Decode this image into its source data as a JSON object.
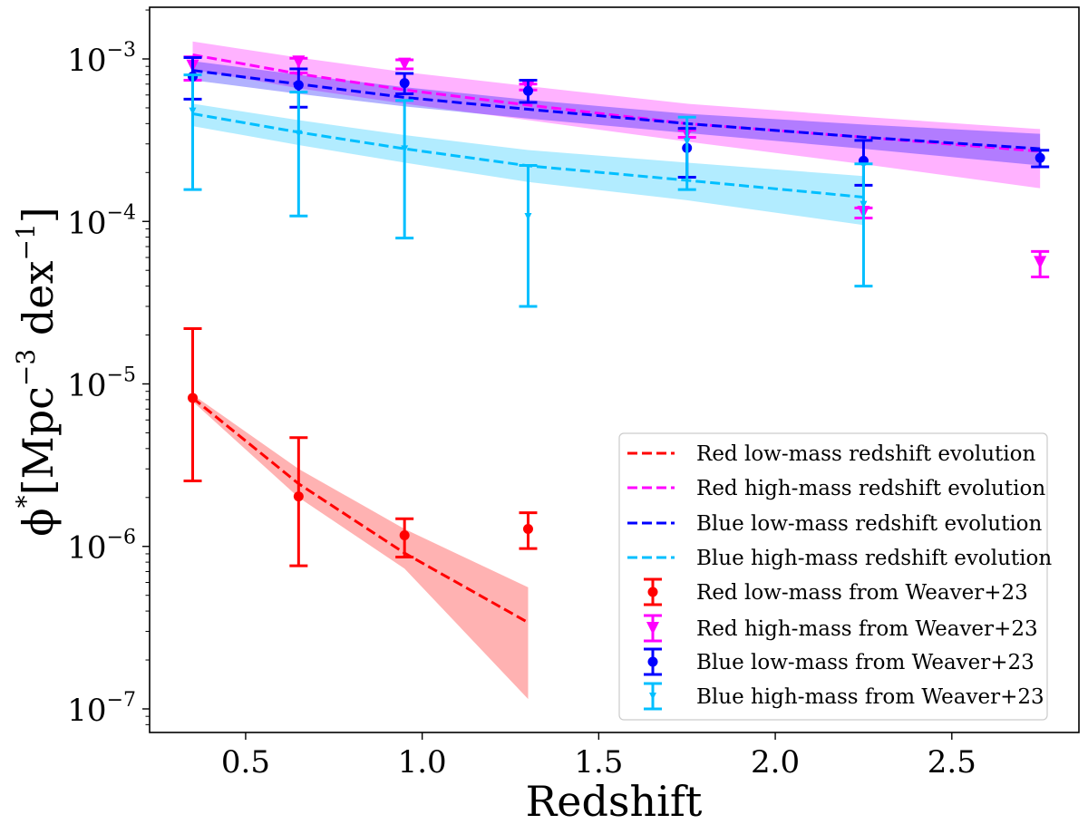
{
  "chart_data": {
    "type": "line",
    "title": "",
    "xlabel": "Redshift",
    "ylabel_parts": [
      {
        "text": "ϕ",
        "sup": false
      },
      {
        "text": "*",
        "sup": true
      },
      {
        "text": "[Mpc",
        "sup": false
      },
      {
        "text": "−3",
        "sup": true
      },
      {
        "text": " dex",
        "sup": false
      },
      {
        "text": "−1",
        "sup": true
      },
      {
        "text": "]",
        "sup": false
      }
    ],
    "xlim": [
      0.228,
      2.86
    ],
    "ylim": [
      7.16e-08,
      0.00208
    ],
    "yscale": "log",
    "grid": false,
    "xticks": [
      {
        "value": 0.5,
        "label": "0.5"
      },
      {
        "value": 1.0,
        "label": "1.0"
      },
      {
        "value": 1.5,
        "label": "1.5"
      },
      {
        "value": 2.0,
        "label": "2.0"
      },
      {
        "value": 2.5,
        "label": "2.5"
      }
    ],
    "yticks": [
      {
        "value": 0.001,
        "base": "10",
        "exp": "−3"
      },
      {
        "value": 0.0001,
        "base": "10",
        "exp": "−4"
      },
      {
        "value": 1e-05,
        "base": "10",
        "exp": "−5"
      },
      {
        "value": 1e-06,
        "base": "10",
        "exp": "−6"
      },
      {
        "value": 1e-07,
        "base": "10",
        "exp": "−7"
      }
    ],
    "legend": {
      "position": "lower right"
    },
    "fits": [
      {
        "name": "Red low-mass redshift evolution",
        "color": "#ff0000",
        "z": [
          0.35,
          0.65,
          0.95,
          1.3
        ],
        "mid": [
          8.2e-06,
          2.43e-06,
          9.1e-07,
          3.4e-07
        ],
        "upper": [
          8.6e-06,
          3e-06,
          1.28e-06,
          5.6e-07
        ],
        "lower": [
          7.8e-06,
          2e-06,
          7.3e-07,
          1.15e-07
        ]
      },
      {
        "name": "Red high-mass redshift evolution",
        "color": "#ff00ff",
        "z": [
          0.35,
          0.65,
          0.95,
          1.3,
          1.75,
          2.25,
          2.75
        ],
        "mid": [
          0.00106,
          0.00081,
          0.000645,
          0.00052,
          0.0004,
          0.00033,
          0.00027
        ],
        "upper": [
          0.00128,
          0.00102,
          0.00083,
          0.00068,
          0.00053,
          0.00044,
          0.00037
        ],
        "lower": [
          0.00086,
          0.00066,
          0.00053,
          0.00042,
          0.00031,
          0.000225,
          0.00016
        ]
      },
      {
        "name": "Blue low-mass redshift evolution",
        "color": "#0000ff",
        "z": [
          0.35,
          0.65,
          0.95,
          1.3,
          1.75,
          2.25,
          2.75
        ],
        "mid": [
          0.00085,
          0.0007,
          0.00058,
          0.00049,
          0.0004,
          0.00033,
          0.00028
        ],
        "upper": [
          0.00097,
          0.0008,
          0.00067,
          0.00056,
          0.00046,
          0.000395,
          0.000346
        ],
        "lower": [
          0.00074,
          0.00061,
          0.00051,
          0.00043,
          0.00035,
          0.00028,
          0.000221
        ]
      },
      {
        "name": "Blue high-mass redshift evolution",
        "color": "#00bfff",
        "z": [
          0.35,
          0.65,
          0.95,
          1.3,
          1.75,
          2.25
        ],
        "mid": [
          0.00046,
          0.000354,
          0.00028,
          0.00022,
          0.000179,
          0.000141
        ],
        "upper": [
          0.00053,
          0.00042,
          0.00034,
          0.000275,
          0.00023,
          0.00019
        ],
        "lower": [
          0.000386,
          0.000295,
          0.00023,
          0.000175,
          0.000135,
          9.5e-05
        ]
      }
    ],
    "points": [
      {
        "name": "Red low-mass from Weaver+23",
        "color": "#ff0000",
        "marker": "circle",
        "z": [
          0.35,
          0.65,
          0.95,
          1.3
        ],
        "y": [
          8.2e-06,
          2.03e-06,
          1.17e-06,
          1.28e-06
        ],
        "y_upper": [
          2.19e-05,
          4.67e-06,
          1.48e-06,
          1.61e-06
        ],
        "y_lower": [
          2.53e-06,
          7.6e-07,
          8.6e-07,
          9.7e-07
        ]
      },
      {
        "name": "Red high-mass from Weaver+23",
        "color": "#ff00ff",
        "marker": "triangle-down",
        "z": [
          0.35,
          0.65,
          0.95,
          1.3,
          1.75,
          2.25,
          2.75
        ],
        "y": [
          0.000906,
          0.00096,
          0.00093,
          0.00067,
          0.00035,
          0.000114,
          5.6e-05
        ],
        "y_upper": [
          0.00103,
          0.00101,
          0.000987,
          0.0007,
          0.000364,
          0.000121,
          6.53e-05
        ],
        "y_lower": [
          0.00074,
          0.00082,
          0.000868,
          0.000644,
          0.000329,
          0.000105,
          4.55e-05
        ]
      },
      {
        "name": "Blue low-mass from Weaver+23",
        "color": "#0000ff",
        "marker": "circle",
        "z": [
          0.35,
          0.65,
          0.95,
          1.3,
          1.75,
          2.25,
          2.75
        ],
        "y": [
          0.00078,
          0.00069,
          0.00071,
          0.000636,
          0.000283,
          0.000236,
          0.000246
        ],
        "y_upper": [
          0.00102,
          0.000868,
          0.000814,
          0.00074,
          0.000374,
          0.000315,
          0.000274
        ],
        "y_lower": [
          0.000566,
          0.000505,
          0.00061,
          0.00054,
          0.000187,
          0.000167,
          0.000217
        ]
      },
      {
        "name": "Blue high-mass from Weaver+23",
        "color": "#00bfff",
        "marker": "triangle-down-small",
        "z": [
          0.35,
          0.65,
          0.95,
          1.3,
          1.75,
          2.25
        ],
        "y": [
          0.000477,
          0.000346,
          0.000279,
          0.000107,
          0.00031,
          0.000127
        ],
        "y_upper": [
          0.000797,
          0.000625,
          0.000555,
          0.000221,
          0.000438,
          0.000226
        ],
        "y_lower": [
          0.000157,
          0.000108,
          7.9e-05,
          3e-05,
          0.000157,
          4e-05
        ]
      }
    ]
  }
}
